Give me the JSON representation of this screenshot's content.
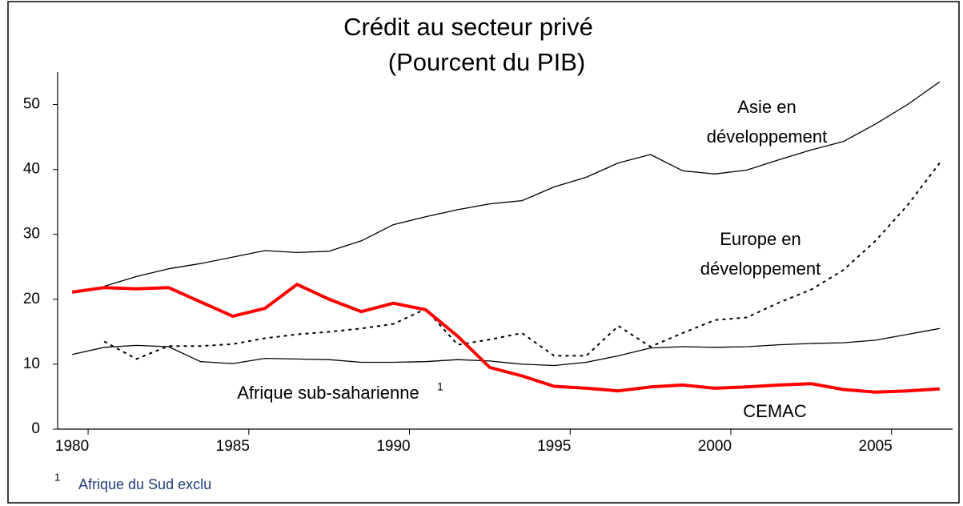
{
  "chart_data": {
    "type": "line",
    "title_lines": [
      "Crédit au secteur privé",
      "(Pourcent du PIB)"
    ],
    "x": [
      1980,
      1981,
      1982,
      1983,
      1984,
      1985,
      1986,
      1987,
      1988,
      1989,
      1990,
      1991,
      1992,
      1993,
      1994,
      1995,
      1996,
      1997,
      1998,
      1999,
      2000,
      2001,
      2002,
      2003,
      2004,
      2005,
      2006,
      2007
    ],
    "xlim": [
      1979.55,
      2007.4
    ],
    "xticks": [
      1980,
      1985,
      1990,
      1995,
      2000,
      2005
    ],
    "ylim": [
      0,
      55
    ],
    "yticks": [
      0,
      10,
      20,
      30,
      40,
      50
    ],
    "series": [
      {
        "name_lines": [
          "Asie en",
          "développement"
        ],
        "color": "#000000",
        "style": "solid",
        "values": [
          null,
          22,
          23.5,
          24.7,
          25.5,
          26.5,
          27.5,
          27.2,
          27.4,
          29,
          31.5,
          32.7,
          33.8,
          34.7,
          35.2,
          37.3,
          38.8,
          41,
          42.3,
          39.8,
          39.3,
          39.9,
          41.5,
          43,
          44.3,
          47,
          50,
          53.5
        ]
      },
      {
        "name_lines": [
          "Europe en",
          "développement"
        ],
        "color": "#000000",
        "style": "dotted",
        "values": [
          null,
          13.5,
          10.8,
          12.8,
          12.8,
          13.1,
          14,
          14.6,
          15,
          15.5,
          16.2,
          18.5,
          13,
          13.8,
          14.8,
          11.3,
          11.3,
          15.9,
          12.7,
          14.8,
          16.8,
          17.2,
          19.5,
          21.5,
          24.5,
          29,
          34.5,
          41
        ]
      },
      {
        "name_lines": [
          "Afrique sub-saharienne"
        ],
        "note": "1",
        "color": "#000000",
        "style": "solid",
        "values": [
          11.5,
          12.6,
          12.9,
          12.7,
          10.4,
          10.1,
          10.9,
          10.8,
          10.7,
          10.3,
          10.3,
          10.4,
          10.7,
          10.5,
          10,
          9.8,
          10.3,
          11.3,
          12.5,
          12.7,
          12.6,
          12.7,
          13,
          13.2,
          13.3,
          13.7,
          14.6,
          15.5
        ]
      },
      {
        "name_lines": [
          "CEMAC"
        ],
        "color": "#ff0000",
        "style": "bold",
        "values": [
          21.1,
          21.8,
          21.6,
          21.8,
          19.6,
          17.4,
          18.6,
          22.3,
          20,
          18.1,
          19.4,
          18.4,
          14.3,
          9.5,
          8.2,
          6.6,
          6.3,
          5.9,
          6.5,
          6.8,
          6.3,
          6.5,
          6.8,
          7,
          6.1,
          5.7,
          5.9,
          6.2
        ]
      }
    ],
    "footnote": {
      "mark": "1",
      "text": "Afrique du Sud exclu"
    }
  }
}
